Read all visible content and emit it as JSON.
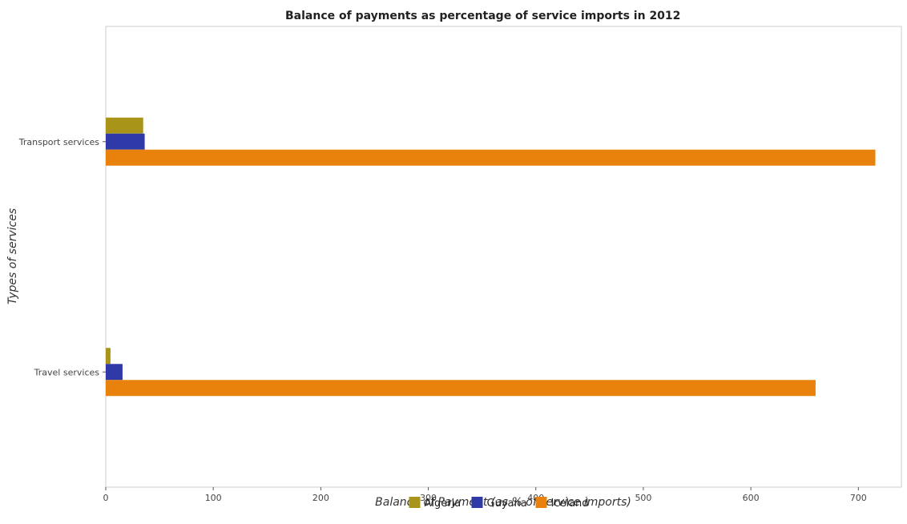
{
  "chart_data": {
    "type": "bar",
    "orientation": "horizontal",
    "title": "Balance of payments as percentage of service imports in 2012",
    "xlabel": "Balance of Payment (as % of service imports)",
    "ylabel": "Types of services",
    "categories": [
      "Transport services",
      "Travel services"
    ],
    "series": [
      {
        "name": "Algeria",
        "color": "#a89418",
        "values": [
          34.8,
          4.4
        ]
      },
      {
        "name": "Guyana",
        "color": "#2f3aa8",
        "values": [
          36.2,
          15.6
        ]
      },
      {
        "name": "Iceland",
        "color": "#e8820c",
        "values": [
          715.8,
          660.2
        ]
      }
    ],
    "xlim": [
      0,
      740
    ],
    "xticks": [
      0,
      100,
      200,
      300,
      400,
      500,
      600,
      700
    ],
    "grid": false,
    "legend_position": "bottom-center"
  }
}
